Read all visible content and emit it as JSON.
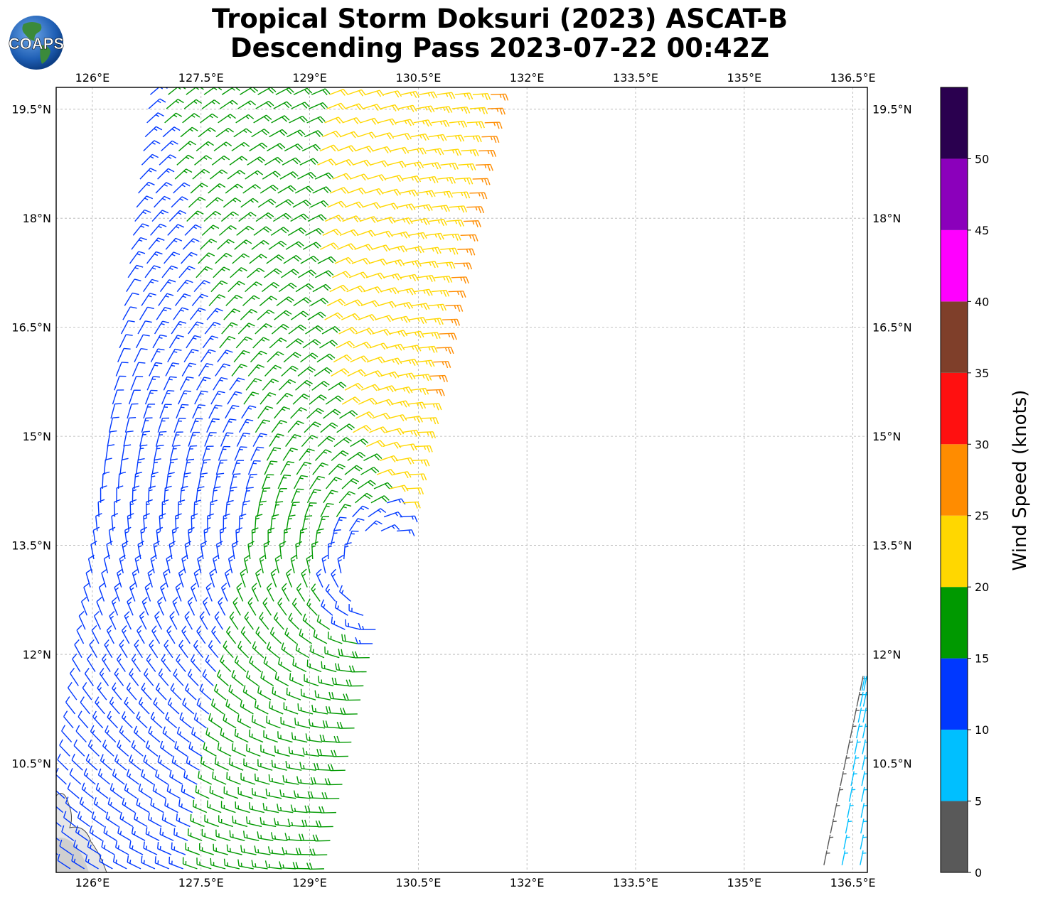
{
  "title": {
    "line1": "Tropical Storm Doksuri (2023) ASCAT-B",
    "line2": "Descending Pass 2023-07-22 00:42Z"
  },
  "logo": {
    "text": "COAPS"
  },
  "chart_data": {
    "type": "wind-barb map",
    "xlim": [
      125.5,
      136.7
    ],
    "ylim": [
      9.0,
      19.8
    ],
    "x_ticks": [
      126,
      127.5,
      129,
      130.5,
      132,
      133.5,
      135,
      136.5
    ],
    "x_tick_labels": [
      "126°E",
      "127.5°E",
      "129°E",
      "130.5°E",
      "132°E",
      "133.5°E",
      "135°E",
      "136.5°E"
    ],
    "y_ticks": [
      10.5,
      12,
      13.5,
      15,
      16.5,
      18,
      19.5
    ],
    "y_tick_labels": [
      "10.5°N",
      "12°N",
      "13.5°N",
      "15°N",
      "16.5°N",
      "18°N",
      "19.5°N"
    ],
    "grid": true,
    "storm_center": {
      "lon": 130.1,
      "lat": 13.1
    },
    "colorbar": {
      "label": "Wind Speed (knots)",
      "bounds": [
        0,
        5,
        10,
        15,
        20,
        25,
        30,
        35,
        40,
        45,
        50,
        55
      ],
      "tick_values": [
        0,
        5,
        10,
        15,
        20,
        25,
        30,
        35,
        40,
        45,
        50
      ],
      "tick_labels": [
        "0",
        "5",
        "10",
        "15",
        "20",
        "25",
        "30",
        "35",
        "40",
        "45",
        "50"
      ],
      "colors": [
        "#595959",
        "#00bfff",
        "#0038ff",
        "#009900",
        "#ffd700",
        "#ff8c00",
        "#ff1010",
        "#7f3f2a",
        "#ff00ff",
        "#8b00bb",
        "#2a004f"
      ]
    },
    "swaths": [
      {
        "name": "main",
        "lon_west_north": 126.8,
        "lon_east_north": 131.5,
        "lon_west_south": 125.5,
        "lon_east_south": 129.2,
        "lat_top": 19.7,
        "lat_bottom": 9.05,
        "rows": 56,
        "cols": 20
      },
      {
        "name": "eastern-edge",
        "lon_west_north": 136.6,
        "lon_east_north": 136.65,
        "lon_west_south": 136.1,
        "lon_east_south": 136.6,
        "lat_top": 11.5,
        "lat_bottom": 9.1,
        "rows": 12,
        "cols": 3
      }
    ]
  }
}
